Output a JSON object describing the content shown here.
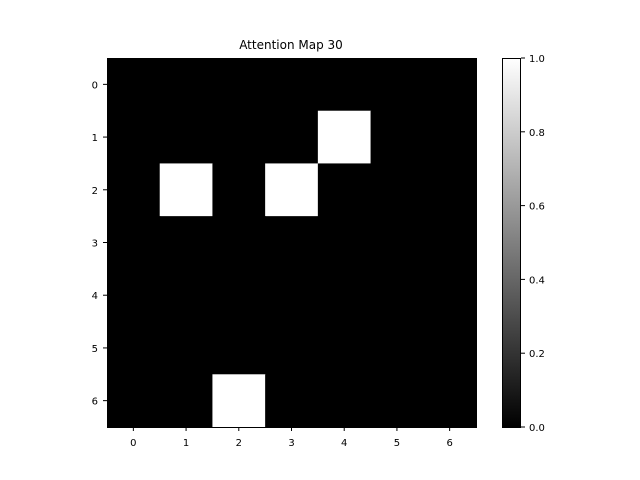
{
  "chart_data": {
    "type": "heatmap",
    "title": "Attention Map 30",
    "xlabel": "",
    "ylabel": "",
    "x_ticks": [
      "0",
      "1",
      "2",
      "3",
      "4",
      "5",
      "6"
    ],
    "y_ticks": [
      "0",
      "1",
      "2",
      "3",
      "4",
      "5",
      "6"
    ],
    "values": [
      [
        0,
        0,
        0,
        0,
        0,
        0,
        0
      ],
      [
        0,
        0,
        0,
        0,
        1,
        0,
        0
      ],
      [
        0,
        1,
        0,
        1,
        0,
        0,
        0
      ],
      [
        0,
        0,
        0,
        0,
        0,
        0,
        0
      ],
      [
        0,
        0,
        0,
        0,
        0,
        0,
        0
      ],
      [
        0,
        0,
        0,
        0,
        0,
        0,
        0
      ],
      [
        0,
        0,
        1,
        0,
        0,
        0,
        0
      ]
    ],
    "colormap": "gray",
    "vmin": 0,
    "vmax": 1,
    "colorbar_ticks": [
      "0.0",
      "0.2",
      "0.4",
      "0.6",
      "0.8",
      "1.0"
    ],
    "grid": false
  }
}
